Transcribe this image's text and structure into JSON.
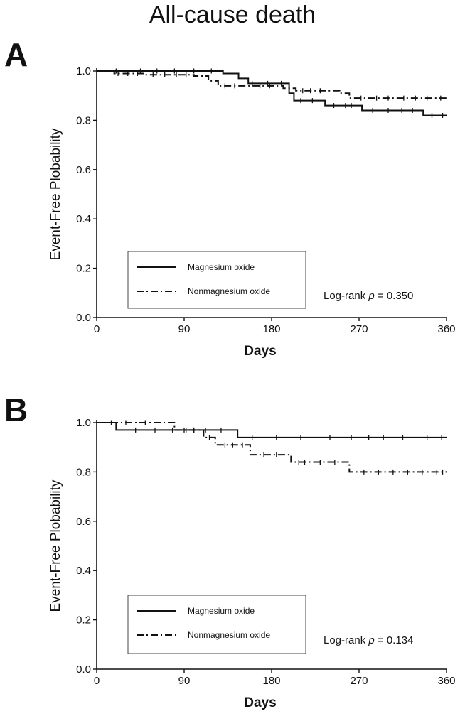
{
  "title": "All-cause death",
  "chart_data": [
    {
      "type": "line",
      "panel": "A",
      "xlabel": "Days",
      "ylabel": "Event-Free Plobability",
      "xlim": [
        0,
        360
      ],
      "ylim": [
        0.0,
        1.0
      ],
      "xticks": [
        "0",
        "90",
        "180",
        "270",
        "360"
      ],
      "yticks": [
        "0.0",
        "0.2",
        "0.4",
        "0.6",
        "0.8",
        "1.0"
      ],
      "grid": false,
      "legend_position": "bottom-left",
      "annotation": {
        "prefix": "Log-rank ",
        "p": "p",
        "suffix": " = 0.350"
      },
      "series": [
        {
          "name": "Magnesium oxide",
          "style": "solid",
          "steps": [
            [
              0,
              1.0
            ],
            [
              130,
              0.99
            ],
            [
              146,
              0.97
            ],
            [
              156,
              0.95
            ],
            [
              198,
              0.91
            ],
            [
              203,
              0.88
            ],
            [
              235,
              0.86
            ],
            [
              273,
              0.84
            ],
            [
              336,
              0.82
            ],
            [
              360,
              0.82
            ]
          ],
          "censored": [
            [
              20,
              1.0
            ],
            [
              45,
              1.0
            ],
            [
              62,
              1.0
            ],
            [
              80,
              1.0
            ],
            [
              100,
              1.0
            ],
            [
              118,
              1.0
            ],
            [
              160,
              0.95
            ],
            [
              176,
              0.95
            ],
            [
              190,
              0.95
            ],
            [
              210,
              0.88
            ],
            [
              222,
              0.88
            ],
            [
              244,
              0.86
            ],
            [
              256,
              0.86
            ],
            [
              262,
              0.86
            ],
            [
              284,
              0.84
            ],
            [
              300,
              0.84
            ],
            [
              314,
              0.84
            ],
            [
              325,
              0.84
            ],
            [
              345,
              0.82
            ],
            [
              356,
              0.82
            ]
          ]
        },
        {
          "name": "Nonmagnesium oxide",
          "style": "dash-dot",
          "steps": [
            [
              0,
              1.0
            ],
            [
              18,
              0.99
            ],
            [
              50,
              0.985
            ],
            [
              100,
              0.98
            ],
            [
              115,
              0.96
            ],
            [
              125,
              0.94
            ],
            [
              192,
              0.93
            ],
            [
              205,
              0.92
            ],
            [
              250,
              0.91
            ],
            [
              260,
              0.89
            ],
            [
              360,
              0.89
            ]
          ],
          "censored": [
            [
              22,
              0.99
            ],
            [
              32,
              0.99
            ],
            [
              42,
              0.99
            ],
            [
              58,
              0.985
            ],
            [
              70,
              0.985
            ],
            [
              82,
              0.985
            ],
            [
              92,
              0.985
            ],
            [
              132,
              0.94
            ],
            [
              142,
              0.94
            ],
            [
              168,
              0.94
            ],
            [
              178,
              0.94
            ],
            [
              212,
              0.92
            ],
            [
              220,
              0.92
            ],
            [
              230,
              0.92
            ],
            [
              272,
              0.89
            ],
            [
              288,
              0.89
            ],
            [
              300,
              0.89
            ],
            [
              316,
              0.89
            ],
            [
              328,
              0.89
            ],
            [
              340,
              0.89
            ],
            [
              354,
              0.89
            ]
          ]
        }
      ]
    },
    {
      "type": "line",
      "panel": "B",
      "xlabel": "Days",
      "ylabel": "Event-Free Plobability",
      "xlim": [
        0,
        360
      ],
      "ylim": [
        0.0,
        1.0
      ],
      "xticks": [
        "0",
        "90",
        "180",
        "270",
        "360"
      ],
      "yticks": [
        "0.0",
        "0.2",
        "0.4",
        "0.6",
        "0.8",
        "1.0"
      ],
      "grid": false,
      "legend_position": "bottom-left",
      "annotation": {
        "prefix": "Log-rank ",
        "p": "p",
        "suffix": " = 0.134"
      },
      "series": [
        {
          "name": "Magnesium oxide",
          "style": "solid",
          "steps": [
            [
              0,
              1.0
            ],
            [
              20,
              0.97
            ],
            [
              145,
              0.94
            ],
            [
              360,
              0.94
            ]
          ],
          "censored": [
            [
              40,
              0.97
            ],
            [
              60,
              0.97
            ],
            [
              78,
              0.97
            ],
            [
              90,
              0.97
            ],
            [
              100,
              0.97
            ],
            [
              112,
              0.97
            ],
            [
              128,
              0.97
            ],
            [
              160,
              0.94
            ],
            [
              185,
              0.94
            ],
            [
              210,
              0.94
            ],
            [
              240,
              0.94
            ],
            [
              262,
              0.94
            ],
            [
              280,
              0.94
            ],
            [
              295,
              0.94
            ],
            [
              315,
              0.94
            ],
            [
              340,
              0.94
            ],
            [
              355,
              0.94
            ]
          ]
        },
        {
          "name": "Nonmagnesium oxide",
          "style": "dash-dot",
          "steps": [
            [
              0,
              1.0
            ],
            [
              80,
              0.97
            ],
            [
              110,
              0.94
            ],
            [
              122,
              0.91
            ],
            [
              158,
              0.87
            ],
            [
              200,
              0.84
            ],
            [
              260,
              0.8
            ],
            [
              360,
              0.8
            ]
          ],
          "censored": [
            [
              15,
              1.0
            ],
            [
              30,
              1.0
            ],
            [
              50,
              1.0
            ],
            [
              92,
              0.97
            ],
            [
              100,
              0.97
            ],
            [
              116,
              0.94
            ],
            [
              132,
              0.91
            ],
            [
              140,
              0.91
            ],
            [
              150,
              0.91
            ],
            [
              172,
              0.87
            ],
            [
              185,
              0.87
            ],
            [
              208,
              0.84
            ],
            [
              214,
              0.84
            ],
            [
              230,
              0.84
            ],
            [
              245,
              0.84
            ],
            [
              275,
              0.8
            ],
            [
              290,
              0.8
            ],
            [
              305,
              0.8
            ],
            [
              320,
              0.8
            ],
            [
              335,
              0.8
            ],
            [
              350,
              0.8
            ],
            [
              356,
              0.8
            ]
          ]
        }
      ]
    }
  ]
}
